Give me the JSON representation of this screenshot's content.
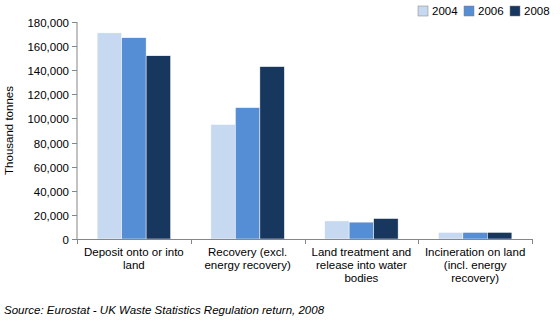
{
  "chart_data": {
    "type": "bar",
    "y_label": "Thousand tonnes",
    "categories": [
      "Deposit onto or into land",
      "Recovery (excl. energy recovery)",
      "Land treatment and release into water bodies",
      "Incineration on land (incl. energy recovery)"
    ],
    "series": [
      {
        "name": "2004",
        "color": "#c6d9f1",
        "values": [
          171000,
          95000,
          15000,
          5500
        ]
      },
      {
        "name": "2006",
        "color": "#558ed5",
        "values": [
          167000,
          109000,
          14000,
          5500
        ]
      },
      {
        "name": "2008",
        "color": "#17375e",
        "values": [
          152000,
          143000,
          17000,
          5500
        ]
      }
    ],
    "ylim": [
      0,
      180000
    ],
    "yticks": [
      0,
      {
        "value": 20000,
        "label": "20,000"
      },
      {
        "value": 40000,
        "label": "40,000"
      },
      {
        "value": 60000,
        "label": "60,000"
      },
      {
        "value": 80000,
        "label": "80,000"
      },
      {
        "value": 100000,
        "label": "100,000"
      },
      {
        "value": 120000,
        "label": "120,000"
      },
      {
        "value": 140000,
        "label": "140,000"
      },
      {
        "value": 160000,
        "label": "160,000"
      },
      {
        "value": 180000,
        "label": "180,000"
      }
    ],
    "grid": false,
    "legend": "top-right",
    "annotations": [
      "Source: Eurostat - UK Waste Statistics Regulation return, 2008"
    ]
  }
}
